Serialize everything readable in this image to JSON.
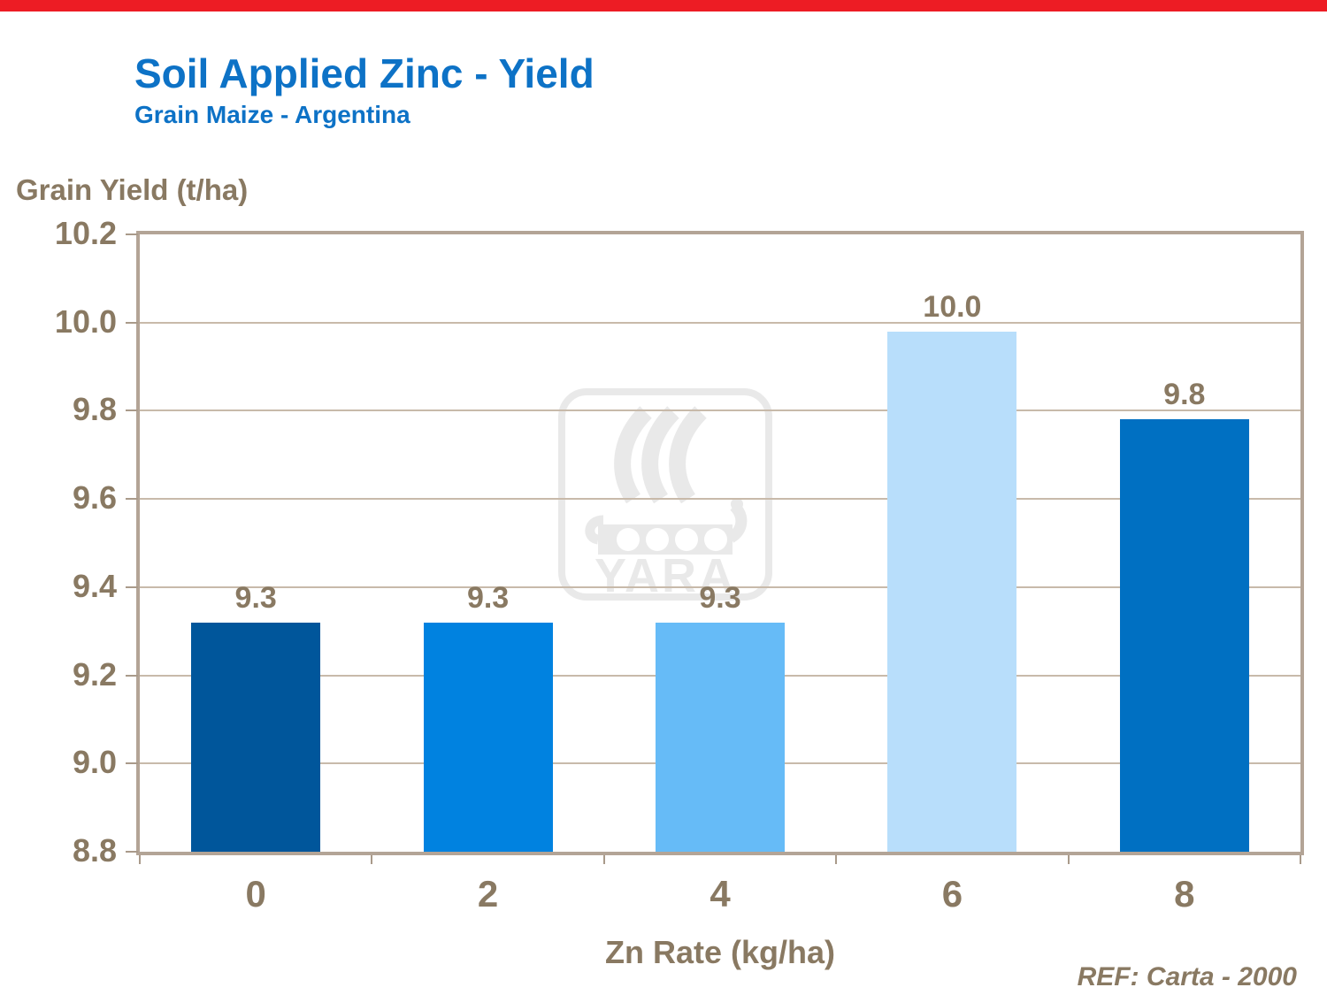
{
  "slide": {
    "topbar_color": "#ED1C24",
    "background_color": "#FFFFFF"
  },
  "header": {
    "title": "Soil Applied Zinc - Yield",
    "subtitle": "Grain Maize - Argentina",
    "title_color": "#0D72C6"
  },
  "chart_data": {
    "type": "bar",
    "title": "Soil Applied Zinc - Yield",
    "subtitle": "Grain Maize - Argentina",
    "ylabel": "Grain Yield (t/ha)",
    "xlabel": "Zn Rate (kg/ha)",
    "categories": [
      "0",
      "2",
      "4",
      "6",
      "8"
    ],
    "values": [
      9.3,
      9.3,
      9.3,
      10.0,
      9.8
    ],
    "value_labels": [
      "9.3",
      "9.3",
      "9.3",
      "10.0",
      "9.8"
    ],
    "plotted_values": [
      9.32,
      9.32,
      9.32,
      9.98,
      9.78
    ],
    "bar_colors": [
      "#00569B",
      "#0082E0",
      "#66BBF7",
      "#B8DEFB",
      "#0070C2"
    ],
    "ylim": [
      8.8,
      10.2
    ],
    "ytick_step": 0.2,
    "yticks": [
      "10.2",
      "10.0",
      "9.8",
      "9.6",
      "9.4",
      "9.2",
      "9.0",
      "8.8"
    ],
    "grid": "horizontal",
    "legend": "none",
    "text_color": "#897962",
    "frame_color": "#B3A496",
    "grid_color": "#C8BAAA",
    "tick_color": "#A99A8A"
  },
  "watermark": {
    "text": "YARA",
    "icon": "yara-viking-ship-logo",
    "color": "#E9E9E9"
  },
  "footer": {
    "ref": "REF: Carta - 2000"
  }
}
